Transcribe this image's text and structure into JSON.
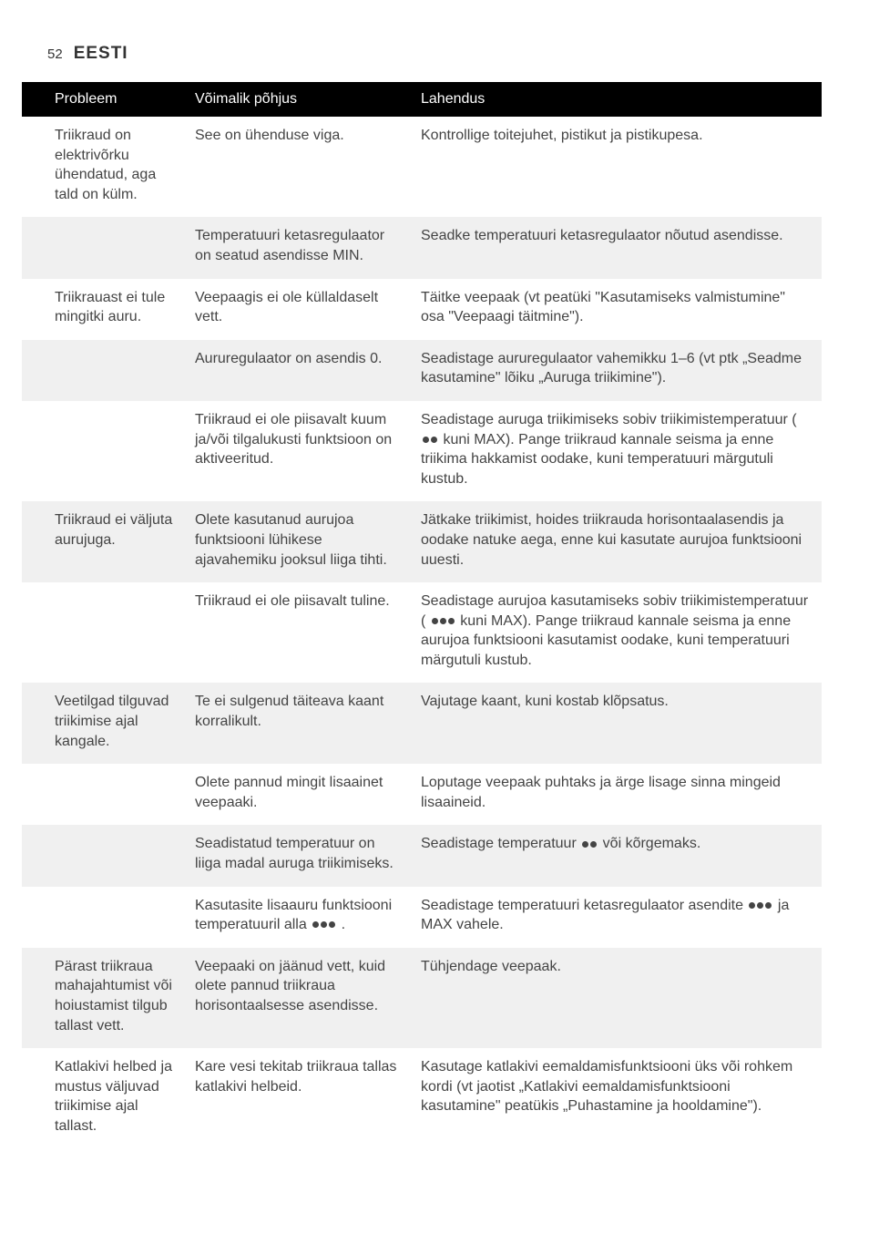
{
  "header": {
    "pageNumber": "52",
    "title": "EESTI"
  },
  "table": {
    "columns": [
      "Probleem",
      "Võimalik põhjus",
      "Lahendus"
    ],
    "colors": {
      "headerBg": "#000000",
      "headerText": "#ffffff",
      "stripeBg": "#f0f0f0",
      "bodyText": "#444444"
    },
    "rows": [
      {
        "stripe": false,
        "problem": "Triikraud on elektrivõrku ühendatud, aga tald on külm.",
        "cause": "See on ühenduse viga.",
        "solution": "Kontrollige toitejuhet, pistikut ja pistikupesa."
      },
      {
        "stripe": true,
        "problem": "",
        "cause": "Temperatuuri ketasregulaator on seatud asendisse MIN.",
        "solution": "Seadke temperatuuri ketasregulaator nõutud asendisse."
      },
      {
        "stripe": false,
        "problem": "Triikrauast ei tule mingitki auru.",
        "cause": "Veepaagis ei ole küllaldaselt vett.",
        "solution": "Täitke veepaak (vt peatüki \"Kasutamiseks valmistumine\" osa \"Veepaagi täitmine\")."
      },
      {
        "stripe": true,
        "problem": "",
        "cause": "Aururegulaator on asendis 0.",
        "solution": "Seadistage aururegulaator vahemikku 1–6 (vt ptk „Seadme kasutamine\" lõiku „Auruga triikimine\")."
      },
      {
        "stripe": false,
        "problem": "",
        "cause": "Triikraud ei ole piisavalt kuum ja/või tilgalukusti funktsioon on aktiveeritud.",
        "solution": "Seadistage auruga triikimiseks sobiv triikimistemperatuur ( {dots2} kuni MAX). Pange triikraud kannale seisma ja enne triikima hakkamist oodake, kuni temperatuuri märgutuli kustub."
      },
      {
        "stripe": true,
        "problem": "Triikraud ei väljuta aurujuga.",
        "cause": "Olete kasutanud aurujoa funktsiooni lühikese ajavahemiku jooksul liiga tihti.",
        "solution": "Jätkake triikimist, hoides triikrauda horisontaalasendis ja oodake natuke aega, enne kui kasutate aurujoa funktsiooni uuesti."
      },
      {
        "stripe": false,
        "problem": "",
        "cause": "Triikraud ei ole piisavalt tuline.",
        "solution": "Seadistage aurujoa kasutamiseks sobiv triikimistemperatuur ( {dots3} kuni MAX). Pange triikraud kannale seisma ja enne aurujoa funktsiooni kasutamist oodake, kuni temperatuuri märgutuli kustub."
      },
      {
        "stripe": true,
        "problem": "Veetilgad tilguvad triikimise ajal kangale.",
        "cause": "Te ei sulgenud täiteava kaant korralikult.",
        "solution": "Vajutage kaant, kuni kostab klõpsatus."
      },
      {
        "stripe": false,
        "problem": "",
        "cause": "Olete pannud mingit lisaainet veepaaki.",
        "solution": "Loputage veepaak puhtaks ja ärge lisage sinna mingeid lisaaineid."
      },
      {
        "stripe": true,
        "problem": "",
        "cause": "Seadistatud temperatuur on liiga madal auruga triikimiseks.",
        "solution": "Seadistage temperatuur {dots2} või kõrgemaks."
      },
      {
        "stripe": false,
        "problem": "",
        "cause": "Kasutasite lisaauru funktsiooni temperatuuril alla {dots3} .",
        "solution": "Seadistage temperatuuri ketasregulaator asendite {dots3} ja MAX vahele."
      },
      {
        "stripe": true,
        "problem": "Pärast triikraua mahajahtumist või hoiustamist tilgub tallast vett.",
        "cause": "Veepaaki on jäänud vett, kuid olete pannud triikraua horisontaalsesse asendisse.",
        "solution": "Tühjendage veepaak."
      },
      {
        "stripe": false,
        "problem": "Katlakivi helbed ja mustus väljuvad triikimise ajal tallast.",
        "cause": "Kare vesi tekitab triikraua tallas katlakivi helbeid.",
        "solution": "Kasutage katlakivi eemaldamisfunktsiooni üks või rohkem kordi (vt jaotist „Katlakivi eemaldamisfunktsiooni kasutamine\" peatükis „Puhastamine ja hooldamine\")."
      }
    ]
  }
}
